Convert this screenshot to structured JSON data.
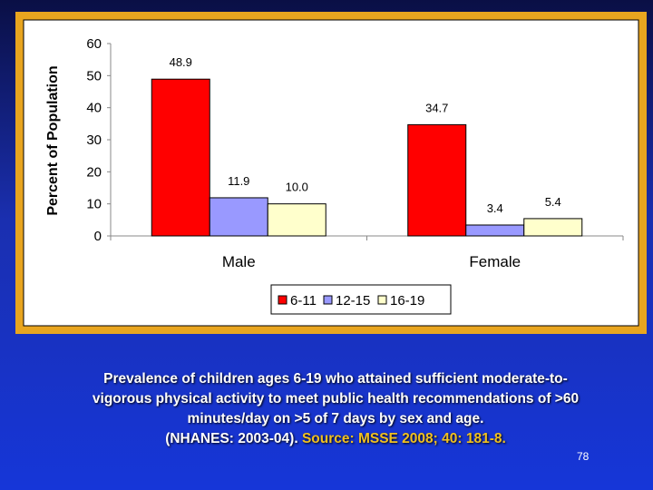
{
  "chart_data": {
    "type": "bar",
    "categories": [
      "Male",
      "Female"
    ],
    "series": [
      {
        "name": "6-11",
        "color": "#ff0000",
        "values": [
          48.9,
          34.7
        ]
      },
      {
        "name": "12-15",
        "color": "#9999ff",
        "values": [
          11.9,
          3.4
        ]
      },
      {
        "name": "16-19",
        "color": "#ffffcc",
        "values": [
          10.0,
          5.4
        ]
      }
    ],
    "data_labels": [
      [
        "48.9",
        "34.7"
      ],
      [
        "11.9",
        "3.4"
      ],
      [
        "10.0",
        "5.4"
      ]
    ],
    "ylabel": "Percent of Population",
    "xlabel": "",
    "ylim": [
      0,
      60
    ],
    "yticks": [
      0,
      10,
      20,
      30,
      40,
      50,
      60
    ],
    "legend_position": "bottom-right"
  },
  "caption": {
    "line1": "Prevalence of children ages 6-19 who attained sufficient moderate-to-",
    "line2": "vigorous physical activity to meet public health recommendations of >60",
    "line3": "minutes/day on >5 of 7 days by sex and age.",
    "line4_main": "(NHANES: 2003-04).",
    "line4_source": "Source: MSSE 2008; 40: 181-8."
  },
  "slide_number": "78"
}
